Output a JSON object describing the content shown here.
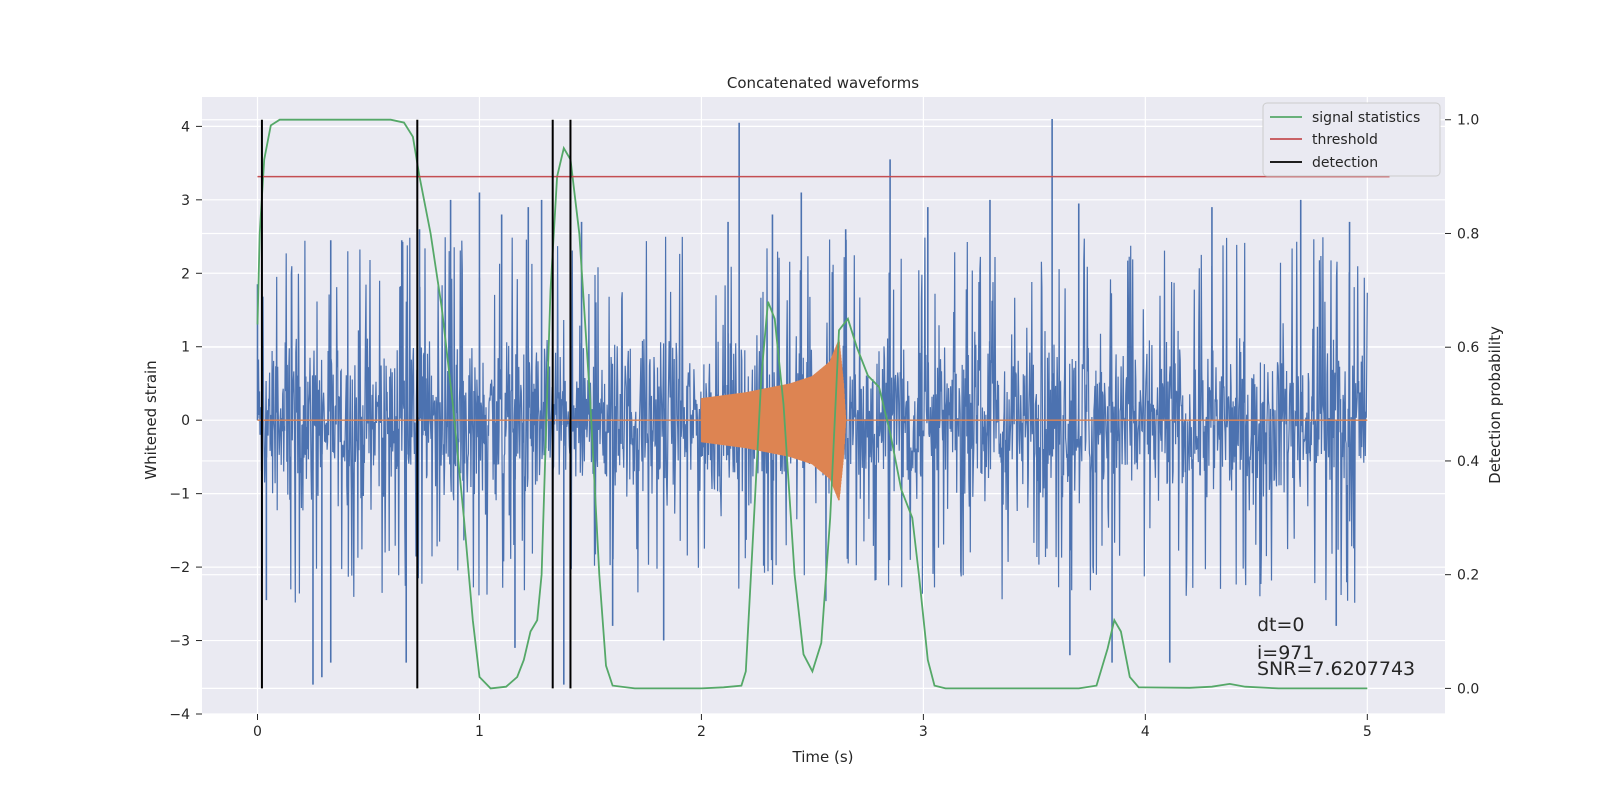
{
  "chart_data": {
    "type": "line",
    "title": "Concatenated waveforms",
    "xlabel": "Time (s)",
    "ylabel_left": "Whitened strain",
    "ylabel_right": "Detection probability",
    "xlim": [
      -0.25,
      5.35
    ],
    "ylim_left": [
      -4.0,
      4.4
    ],
    "ylim_right": [
      -0.045,
      1.04
    ],
    "x_ticks": [
      0,
      1,
      2,
      3,
      4,
      5
    ],
    "x_tick_labels": [
      "0",
      "1",
      "2",
      "3",
      "4",
      "5"
    ],
    "y_left_ticks": [
      -4,
      -3,
      -2,
      -1,
      0,
      1,
      2,
      3,
      4
    ],
    "y_left_tick_labels": [
      "−4",
      "−3",
      "−2",
      "−1",
      "0",
      "1",
      "2",
      "3",
      "4"
    ],
    "y_right_ticks": [
      0.0,
      0.2,
      0.4,
      0.6,
      0.8,
      1.0
    ],
    "y_right_tick_labels": [
      "0.0",
      "0.2",
      "0.4",
      "0.6",
      "0.8",
      "1.0"
    ],
    "grid": true,
    "legend_position": "top-right",
    "series": [
      {
        "name": "signal statistics",
        "axis": "right",
        "color": "#55a868",
        "points": [
          [
            0.0,
            0.64
          ],
          [
            0.01,
            0.8
          ],
          [
            0.03,
            0.93
          ],
          [
            0.06,
            0.99
          ],
          [
            0.1,
            1.0
          ],
          [
            0.3,
            1.0
          ],
          [
            0.6,
            1.0
          ],
          [
            0.66,
            0.995
          ],
          [
            0.7,
            0.97
          ],
          [
            0.73,
            0.9
          ],
          [
            0.78,
            0.8
          ],
          [
            0.83,
            0.67
          ],
          [
            0.88,
            0.5
          ],
          [
            0.93,
            0.3
          ],
          [
            0.97,
            0.12
          ],
          [
            1.0,
            0.02
          ],
          [
            1.05,
            0.0
          ],
          [
            1.12,
            0.003
          ],
          [
            1.17,
            0.02
          ],
          [
            1.2,
            0.05
          ],
          [
            1.23,
            0.1
          ],
          [
            1.26,
            0.12
          ],
          [
            1.28,
            0.2
          ],
          [
            1.3,
            0.45
          ],
          [
            1.32,
            0.7
          ],
          [
            1.35,
            0.9
          ],
          [
            1.38,
            0.95
          ],
          [
            1.41,
            0.93
          ],
          [
            1.45,
            0.8
          ],
          [
            1.5,
            0.5
          ],
          [
            1.54,
            0.2
          ],
          [
            1.57,
            0.04
          ],
          [
            1.6,
            0.005
          ],
          [
            1.7,
            0.0
          ],
          [
            2.0,
            0.0
          ],
          [
            2.1,
            0.002
          ],
          [
            2.18,
            0.005
          ],
          [
            2.2,
            0.03
          ],
          [
            2.23,
            0.25
          ],
          [
            2.27,
            0.55
          ],
          [
            2.3,
            0.68
          ],
          [
            2.33,
            0.65
          ],
          [
            2.37,
            0.5
          ],
          [
            2.42,
            0.2
          ],
          [
            2.46,
            0.06
          ],
          [
            2.5,
            0.03
          ],
          [
            2.54,
            0.08
          ],
          [
            2.58,
            0.3
          ],
          [
            2.62,
            0.63
          ],
          [
            2.66,
            0.65
          ],
          [
            2.7,
            0.6
          ],
          [
            2.75,
            0.55
          ],
          [
            2.8,
            0.53
          ],
          [
            2.85,
            0.45
          ],
          [
            2.9,
            0.35
          ],
          [
            2.95,
            0.3
          ],
          [
            2.98,
            0.2
          ],
          [
            3.02,
            0.05
          ],
          [
            3.05,
            0.005
          ],
          [
            3.1,
            0.0
          ],
          [
            3.7,
            0.0
          ],
          [
            3.78,
            0.005
          ],
          [
            3.83,
            0.07
          ],
          [
            3.86,
            0.12
          ],
          [
            3.89,
            0.1
          ],
          [
            3.93,
            0.02
          ],
          [
            3.97,
            0.002
          ],
          [
            4.2,
            0.001
          ],
          [
            4.3,
            0.003
          ],
          [
            4.38,
            0.008
          ],
          [
            4.45,
            0.003
          ],
          [
            4.6,
            0.0
          ],
          [
            5.0,
            0.0
          ]
        ]
      },
      {
        "name": "threshold",
        "axis": "right",
        "color": "#c44e52",
        "points": [
          [
            0.0,
            0.9
          ],
          [
            5.1,
            0.9
          ]
        ]
      },
      {
        "name": "detection",
        "axis": "right",
        "color": "#000000",
        "vertical_lines_x": [
          0.02,
          0.72,
          1.33,
          1.41
        ],
        "y_range": [
          0.0,
          1.0
        ]
      },
      {
        "name": "",
        "axis": "left",
        "color": "#4c72b0",
        "kind": "noise",
        "x_range": [
          0.0,
          5.0
        ],
        "typical_range": [
          -1.6,
          1.6
        ],
        "peaks": [
          [
            0.0,
            1.85
          ],
          [
            0.02,
            -2.15
          ],
          [
            0.04,
            -2.45
          ],
          [
            0.25,
            -3.6
          ],
          [
            0.29,
            -3.5
          ],
          [
            0.33,
            2.45
          ],
          [
            0.33,
            -3.3
          ],
          [
            0.65,
            2.45
          ],
          [
            0.67,
            -3.3
          ],
          [
            0.73,
            2.6
          ],
          [
            0.87,
            3.0
          ],
          [
            1.0,
            3.1
          ],
          [
            1.1,
            2.8
          ],
          [
            1.16,
            -3.1
          ],
          [
            1.22,
            2.9
          ],
          [
            1.28,
            3.0
          ],
          [
            1.38,
            -3.6
          ],
          [
            1.46,
            2.7
          ],
          [
            1.6,
            -2.8
          ],
          [
            1.83,
            -3.0
          ],
          [
            2.12,
            2.7
          ],
          [
            2.17,
            4.05
          ],
          [
            2.32,
            2.8
          ],
          [
            2.45,
            3.1
          ],
          [
            2.65,
            2.6
          ],
          [
            2.85,
            3.55
          ],
          [
            3.02,
            2.9
          ],
          [
            3.3,
            3.0
          ],
          [
            3.58,
            4.1
          ],
          [
            3.66,
            -3.2
          ],
          [
            3.7,
            2.95
          ],
          [
            3.85,
            -3.3
          ],
          [
            4.11,
            -3.3
          ],
          [
            4.3,
            2.9
          ],
          [
            4.7,
            3.0
          ],
          [
            4.86,
            -2.8
          ],
          [
            4.92,
            2.7
          ]
        ]
      },
      {
        "name": "",
        "axis": "left",
        "color": "#dd8452",
        "kind": "chirp",
        "x_range": [
          2.0,
          2.65
        ],
        "points": [
          [
            2.0,
            0.3
          ],
          [
            2.2,
            0.38
          ],
          [
            2.4,
            0.5
          ],
          [
            2.5,
            0.6
          ],
          [
            2.58,
            0.8
          ],
          [
            2.62,
            1.1
          ],
          [
            2.64,
            0.5
          ],
          [
            2.65,
            0.0
          ]
        ]
      }
    ],
    "legend": [
      {
        "label": "signal statistics",
        "color": "#55a868"
      },
      {
        "label": "threshold",
        "color": "#c44e52"
      },
      {
        "label": "detection",
        "color": "#000000"
      }
    ],
    "annotations": [
      "dt=0",
      "i=971",
      "SNR=7.6207743"
    ]
  }
}
